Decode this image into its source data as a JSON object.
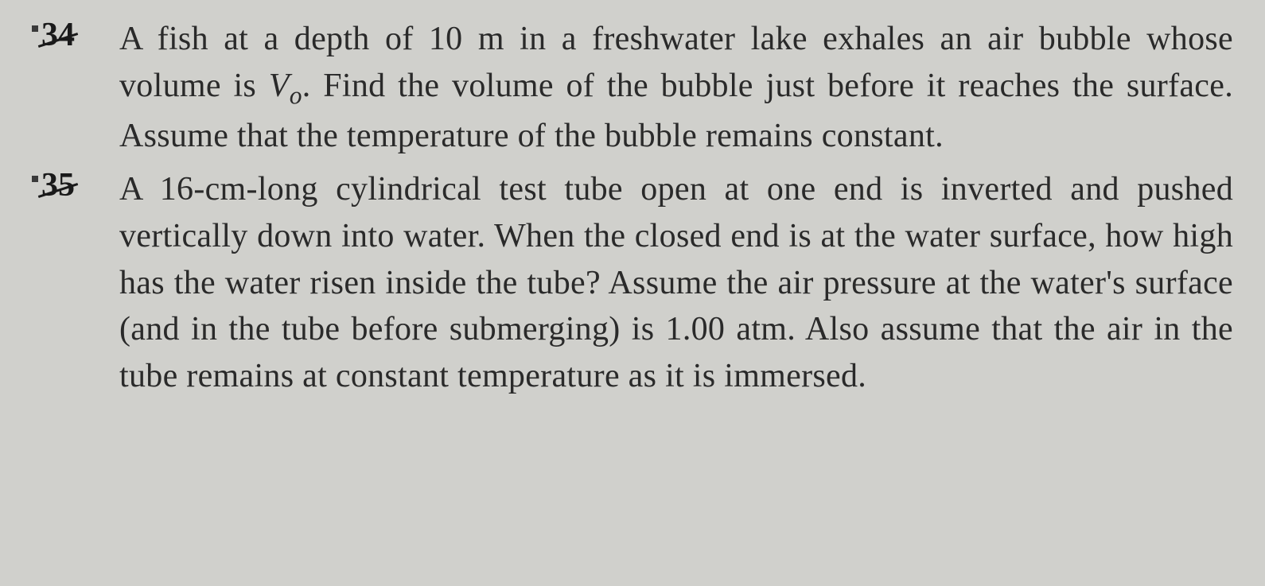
{
  "problems": [
    {
      "number": "34",
      "text_parts": {
        "part1": "A fish at a depth of 10 m in a freshwater lake exhales an air bubble whose volume is ",
        "variable": "V",
        "subscript": "o",
        "part2": ". Find the volume of the bubble just before it reaches the surface. Assume that the temperature of the bubble remains constant."
      }
    },
    {
      "number": "35",
      "text": "A 16-cm-long cylindrical test tube open at one end is inverted and pushed vertically down into water. When the closed end is at the water surface, how high has the water risen inside the tube? Assume the air pressure at the water's surface (and in the tube before submerging) is 1.00 atm. Also assume that the air in the tube remains at constant temperature as it is immersed."
    }
  ],
  "styling": {
    "background_color": "#d0d0cc",
    "text_color": "#2a2a2a",
    "font_family": "Georgia, Times New Roman, serif",
    "number_fontsize": 42,
    "body_fontsize": 42,
    "line_height": 1.4
  }
}
